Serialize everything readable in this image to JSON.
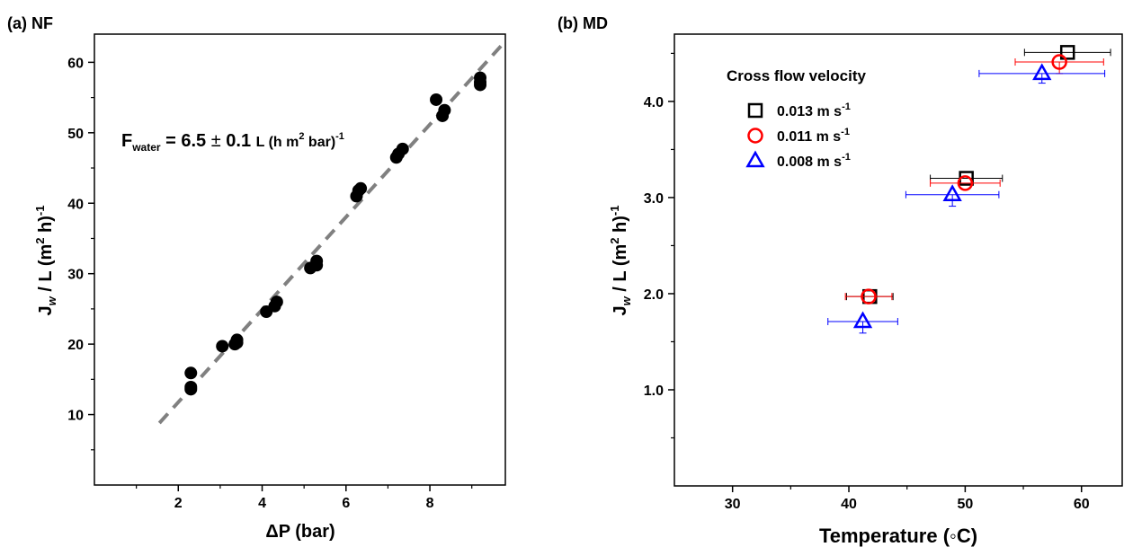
{
  "chart_data": [
    {
      "type": "scatter",
      "panel_label": "(a) NF",
      "xlabel": "ΔP (bar)",
      "ylabel": {
        "main": "J",
        "sub": "w",
        "rest": " / L (m",
        "sup1": "2",
        "rest2": " h)",
        "sup2": "-1"
      },
      "xlim": [
        0,
        9.8
      ],
      "ylim": [
        0,
        64
      ],
      "xticks": [
        2,
        4,
        6,
        8
      ],
      "xtick_labels": [
        "2",
        "4",
        "6",
        "8"
      ],
      "yticks": [
        10,
        20,
        30,
        40,
        50,
        60
      ],
      "ytick_labels": [
        "10",
        "20",
        "30",
        "40",
        "50",
        "60"
      ],
      "grid": false,
      "annotation": {
        "f": "F",
        "sub": "water",
        "main": " = 6.5 ",
        "pm": "±",
        "val": " 0.1 ",
        "unit": "L (h m",
        "sup1": "2",
        "unit2": " bar)",
        "sup2": "-1"
      },
      "series": [
        {
          "marker": "filled-circle",
          "color": "#000000",
          "x": [
            2.3,
            2.3,
            2.3,
            3.05,
            3.35,
            3.4,
            3.4,
            4.1,
            4.3,
            4.35,
            5.15,
            5.3,
            5.3,
            6.25,
            6.3,
            6.35,
            7.2,
            7.25,
            7.35,
            8.15,
            8.3,
            8.35,
            9.2,
            9.2,
            9.2
          ],
          "y": [
            15.9,
            13.6,
            13.9,
            19.7,
            20.0,
            20.2,
            20.6,
            24.6,
            25.4,
            26.0,
            30.8,
            31.2,
            31.8,
            41.0,
            41.8,
            42.1,
            46.5,
            47.0,
            47.7,
            54.7,
            52.4,
            53.2,
            56.8,
            57.2,
            57.8
          ]
        }
      ],
      "fit_line": {
        "style": "dashed",
        "color": "#808080",
        "x": [
          1.55,
          9.8
        ],
        "y": [
          8.8,
          63.0
        ]
      }
    },
    {
      "type": "scatter",
      "panel_label": "(b) MD",
      "xlabel": "Temperature (◦C)",
      "ylabel": {
        "main": "J",
        "sub": "w",
        "rest": " / L (m",
        "sup1": "2",
        "rest2": " h)",
        "sup2": "-1"
      },
      "xlim": [
        25,
        63.5
      ],
      "ylim": [
        0,
        4.7
      ],
      "xticks": [
        30,
        40,
        50,
        60
      ],
      "xtick_labels": [
        "30",
        "40",
        "50",
        "60"
      ],
      "yticks": [
        1.0,
        2.0,
        3.0,
        4.0
      ],
      "ytick_labels": [
        "1.0",
        "2.0",
        "3.0",
        "4.0"
      ],
      "grid": false,
      "legend": {
        "title": "Cross flow velocity",
        "position": "top-left",
        "entries": [
          {
            "label": "0.013 m s",
            "sup": "-1",
            "marker": "square",
            "color": "#000000"
          },
          {
            "label": "0.011 m s",
            "sup": "-1",
            "marker": "circle",
            "color": "#ff0000"
          },
          {
            "label": "0.008 m s",
            "sup": "-1",
            "marker": "triangle",
            "color": "#0000ff"
          }
        ]
      },
      "series": [
        {
          "name": "0.013 m s-1",
          "marker": "square",
          "color": "#000000",
          "x": [
            41.8,
            50.1,
            58.8
          ],
          "y": [
            1.97,
            3.2,
            4.51
          ],
          "xerr": [
            2.0,
            3.1,
            3.7
          ],
          "yerr": [
            0.0,
            0.0,
            0.0
          ]
        },
        {
          "name": "0.011 m s-1",
          "marker": "circle",
          "color": "#ff0000",
          "x": [
            41.7,
            50.0,
            58.1
          ],
          "y": [
            1.97,
            3.15,
            4.41
          ],
          "xerr": [
            2.0,
            3.0,
            3.8
          ],
          "yerr": [
            0.0,
            0.0,
            0.12
          ]
        },
        {
          "name": "0.008 m s-1",
          "marker": "triangle",
          "color": "#0000ff",
          "x": [
            41.2,
            48.9,
            56.6
          ],
          "y": [
            1.71,
            3.03,
            4.29
          ],
          "xerr": [
            3.0,
            4.0,
            5.4
          ],
          "yerr": [
            0.12,
            0.12,
            0.1
          ]
        }
      ]
    }
  ]
}
